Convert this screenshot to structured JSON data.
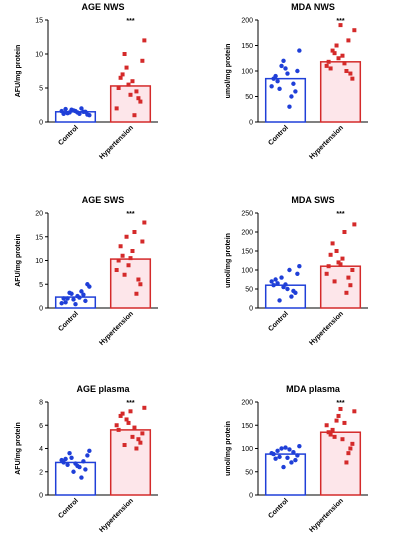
{
  "chart_data": [
    {
      "type": "bar",
      "title": "AGE NWS",
      "ylabel": "AFU/mg protein",
      "categories": [
        "Control",
        "Hypertension"
      ],
      "values": [
        1.5,
        5.3
      ],
      "colors": [
        "#1f3fd8",
        "#d42a2a"
      ],
      "annotation": "***",
      "ylim": [
        0,
        15
      ],
      "yticks": [
        0,
        5,
        10,
        15
      ],
      "points": [
        [
          1.2,
          1.5,
          1.8,
          1.0,
          1.4,
          1.6,
          2.0,
          1.3,
          1.1,
          1.7,
          1.5,
          1.9,
          1.2,
          1.4,
          1.6
        ],
        [
          5,
          3,
          8,
          12,
          6,
          2,
          4.5,
          7,
          9,
          5.5,
          3.5,
          6.5,
          1,
          10,
          4
        ]
      ]
    },
    {
      "type": "bar",
      "title": "MDA NWS",
      "ylabel": "umol/mg protein",
      "categories": [
        "Control",
        "Hypertension"
      ],
      "values": [
        85,
        118
      ],
      "colors": [
        "#1f3fd8",
        "#d42a2a"
      ],
      "annotation": "***",
      "ylim": [
        0,
        200
      ],
      "yticks": [
        0,
        50,
        100,
        150,
        200
      ],
      "points": [
        [
          85,
          60,
          110,
          140,
          95,
          70,
          50,
          80,
          100,
          120,
          75,
          90,
          30,
          65,
          105
        ],
        [
          118,
          95,
          150,
          180,
          130,
          110,
          100,
          140,
          85,
          125,
          160,
          105,
          115,
          135,
          190
        ]
      ]
    },
    {
      "type": "bar",
      "title": "AGE SWS",
      "ylabel": "AFU/mg protein",
      "categories": [
        "Control",
        "Hypertension"
      ],
      "values": [
        2.3,
        10.3
      ],
      "colors": [
        "#1f3fd8",
        "#d42a2a"
      ],
      "annotation": "***",
      "ylim": [
        0,
        20
      ],
      "yticks": [
        0,
        5,
        10,
        15,
        20
      ],
      "points": [
        [
          2,
          1.5,
          3,
          4.5,
          2.5,
          1,
          3.5,
          2,
          5,
          1.8,
          2.8,
          1.2,
          2.2,
          3.2,
          0.8
        ],
        [
          10,
          5,
          15,
          18,
          12,
          8,
          3,
          11,
          14,
          9,
          6,
          13,
          16,
          7,
          10.5
        ]
      ]
    },
    {
      "type": "bar",
      "title": "MDA SWS",
      "ylabel": "umol/mg protein",
      "categories": [
        "Control",
        "Hypertension"
      ],
      "values": [
        60,
        110
      ],
      "colors": [
        "#1f3fd8",
        "#d42a2a"
      ],
      "annotation": "***",
      "ylim": [
        0,
        250
      ],
      "yticks": [
        0,
        50,
        100,
        150,
        200,
        250
      ],
      "points": [
        [
          60,
          40,
          80,
          110,
          50,
          70,
          30,
          65,
          90,
          55,
          45,
          75,
          100,
          20,
          62
        ],
        [
          110,
          60,
          150,
          220,
          130,
          90,
          40,
          170,
          100,
          120,
          80,
          140,
          200,
          70,
          115
        ]
      ]
    },
    {
      "type": "bar",
      "title": "AGE plasma",
      "ylabel": "AFU/mg protein",
      "categories": [
        "Control",
        "Hypertension"
      ],
      "values": [
        2.8,
        5.6
      ],
      "colors": [
        "#1f3fd8",
        "#d42a2a"
      ],
      "annotation": "***",
      "ylim": [
        0,
        8
      ],
      "yticks": [
        0,
        2,
        4,
        6,
        8
      ],
      "points": [
        [
          2.8,
          2.2,
          3.2,
          3.8,
          2.5,
          3.0,
          1.5,
          2.6,
          3.4,
          2.0,
          2.9,
          3.1,
          2.4,
          3.6,
          2.7
        ],
        [
          5.6,
          4.5,
          6.5,
          7.5,
          5.0,
          6.0,
          4.0,
          7.0,
          5.3,
          6.2,
          4.8,
          6.8,
          5.8,
          4.3,
          7.2
        ]
      ]
    },
    {
      "type": "bar",
      "title": "MDA plasma",
      "ylabel": "umol/mg protein",
      "categories": [
        "Control",
        "Hypertension"
      ],
      "values": [
        88,
        135
      ],
      "colors": [
        "#1f3fd8",
        "#d42a2a"
      ],
      "annotation": "***",
      "ylim": [
        0,
        200
      ],
      "yticks": [
        0,
        50,
        100,
        150,
        200
      ],
      "points": [
        [
          88,
          75,
          100,
          105,
          80,
          90,
          70,
          95,
          85,
          60,
          92,
          78,
          98,
          82,
          102
        ],
        [
          135,
          100,
          160,
          180,
          120,
          150,
          70,
          140,
          110,
          170,
          90,
          130,
          155,
          125,
          185
        ]
      ]
    }
  ]
}
